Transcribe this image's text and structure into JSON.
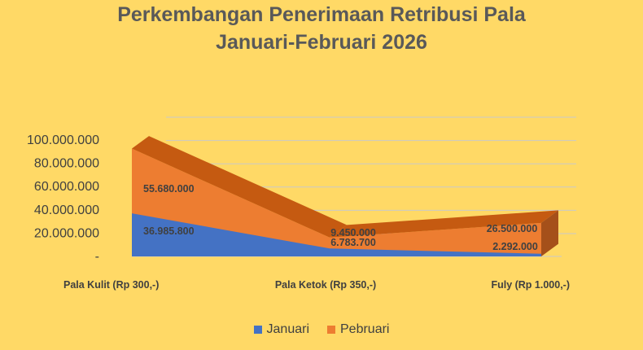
{
  "chart_data": {
    "type": "area",
    "title_line1": "Perkembangan Penerimaan Retribusi Pala",
    "title_line2": "Januari-Februari 2026",
    "categories": [
      "Pala Kulit  (Rp 300,-)",
      "Pala Ketok (Rp 350,-)",
      "Fuly (Rp 1.000,-)"
    ],
    "y_ticks": [
      "-",
      "20.000.000",
      "40.000.000",
      "60.000.000",
      "80.000.000",
      "100.000.000"
    ],
    "ylim": [
      0,
      100000000
    ],
    "stacked": true,
    "series": [
      {
        "name": "Januari",
        "values": [
          36985800,
          6783700,
          2292000
        ],
        "labels": [
          "36.985.800",
          "6.783.700",
          "2.292.000"
        ],
        "color": "#4472C4"
      },
      {
        "name": "Pebruari",
        "values": [
          55680000,
          9450000,
          26500000
        ],
        "labels": [
          "55.680.000",
          "9.450.000",
          "26.500.000"
        ],
        "color": "#ED7D31",
        "top_color": "#C55A11"
      }
    ],
    "legend_position": "bottom",
    "grid": true
  }
}
